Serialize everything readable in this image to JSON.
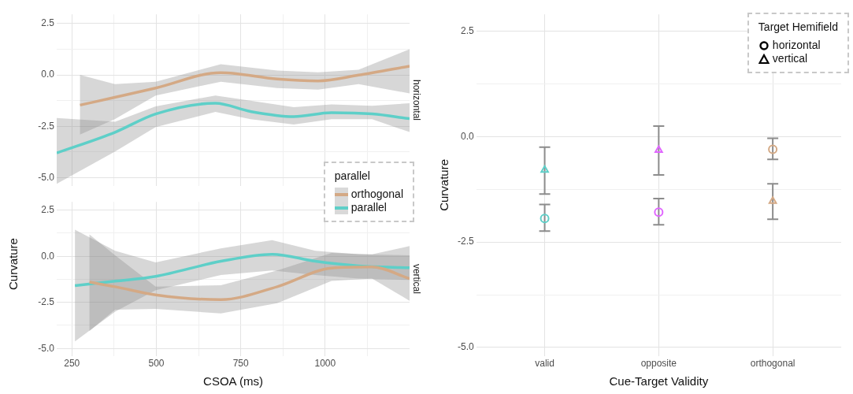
{
  "chart_data": [
    {
      "type": "line",
      "title": "horizontal",
      "ylabel": "Curvature",
      "legend_title": "parallel",
      "legend": "bottom right",
      "xlim": [
        205,
        1250
      ],
      "ylim": [
        -5.4,
        2.95
      ],
      "xticks": [
        250,
        {
          "value": 375,
          "label": null
        },
        500,
        {
          "value": 625,
          "label": null
        },
        750,
        {
          "value": 875,
          "label": null
        },
        1000,
        {
          "value": 1125,
          "label": null
        }
      ],
      "yticks": [
        {
          "value": -5,
          "label": "-5.0"
        },
        {
          "value": -3.75,
          "label": null
        },
        {
          "value": -2.5,
          "label": "-2.5"
        },
        {
          "value": -1.25,
          "label": null
        },
        {
          "value": 0,
          "label": "0.0"
        },
        {
          "value": 1.25,
          "label": null
        },
        {
          "value": 2.5,
          "label": "2.5"
        }
      ],
      "tick_labels": "y",
      "grid": true,
      "marker": "none",
      "series": [
        {
          "name": "orthogonal",
          "color": "#d4a985",
          "x": [
            274,
            377,
            498,
            691,
            858,
            979,
            1099,
            1250
          ],
          "values": [
            -1.47,
            -1.09,
            -0.64,
            0.11,
            -0.2,
            -0.29,
            -0.01,
            0.43
          ],
          "lower": [
            -2.9,
            -2.16,
            -1.0,
            -0.33,
            -0.64,
            -0.72,
            -0.45,
            -0.9
          ],
          "upper": [
            0.0,
            -0.45,
            -0.33,
            0.52,
            0.21,
            0.13,
            0.25,
            1.25
          ]
        },
        {
          "name": "parallel",
          "color": "#5ecfc8",
          "x": [
            205,
            378,
            498,
            675,
            779,
            907,
            1019,
            1139,
            1250
          ],
          "values": [
            -3.8,
            -2.79,
            -1.9,
            -1.38,
            -1.78,
            -2.03,
            -1.84,
            -1.9,
            -2.13
          ],
          "lower": [
            -5.3,
            -3.73,
            -2.54,
            -1.8,
            -2.16,
            -2.41,
            -2.16,
            -2.16,
            -2.78
          ],
          "upper": [
            -2.1,
            -2.28,
            -1.53,
            -1.0,
            -1.25,
            -1.57,
            -1.44,
            -1.5,
            -1.38
          ]
        }
      ]
    },
    {
      "type": "line",
      "title": "vertical",
      "xlabel": "CSOA (ms)",
      "xlim": [
        205,
        1250
      ],
      "ylim": [
        -5.4,
        2.95
      ],
      "xticks": [
        250,
        {
          "value": 375,
          "label": null
        },
        500,
        {
          "value": 625,
          "label": null
        },
        750,
        {
          "value": 875,
          "label": null
        },
        1000,
        {
          "value": 1125,
          "label": null
        }
      ],
      "yticks": [
        {
          "value": -5,
          "label": "-5.0"
        },
        {
          "value": -3.75,
          "label": null
        },
        {
          "value": -2.5,
          "label": "-2.5"
        },
        {
          "value": -1.25,
          "label": null
        },
        {
          "value": 0,
          "label": "0.0"
        },
        {
          "value": 1.25,
          "label": null
        },
        {
          "value": 2.5,
          "label": "2.5"
        }
      ],
      "grid": true,
      "marker": "none",
      "series": [
        {
          "color": "#d4a985",
          "x": [
            302,
            378,
            498,
            691,
            858,
            1019,
            1139,
            1250
          ],
          "values": [
            -1.4,
            -1.65,
            -2.09,
            -2.35,
            -1.65,
            -0.64,
            -0.58,
            -1.21
          ],
          "lower": [
            -4.05,
            -2.9,
            -2.85,
            -3.1,
            -2.54,
            -1.34,
            -1.21,
            -2.41
          ],
          "upper": [
            1.19,
            0.05,
            -1.65,
            -1.57,
            -0.77,
            0.18,
            0.11,
            0.55
          ]
        },
        {
          "color": "#5ecfc8",
          "x": [
            259,
            378,
            498,
            691,
            843,
            971,
            1099,
            1250
          ],
          "values": [
            -1.59,
            -1.35,
            -1.09,
            -0.27,
            0.11,
            -0.27,
            -0.52,
            -0.62
          ],
          "lower": [
            -4.62,
            -3.0,
            -1.84,
            -1.02,
            -0.77,
            -1.02,
            -1.21,
            -1.28
          ],
          "upper": [
            1.44,
            0.3,
            -0.33,
            0.43,
            0.87,
            0.3,
            0.11,
            0.05
          ]
        }
      ]
    },
    {
      "type": "scatter",
      "xlabel": "Cue-Target Validity",
      "ylabel": "Curvature",
      "legend_title": "Target Hemifield",
      "legend": "top right",
      "categories": [
        "valid",
        "opposite",
        "orthogonal"
      ],
      "ylim": [
        -5.2,
        2.9
      ],
      "yticks": [
        {
          "value": -5,
          "label": "-5.0"
        },
        {
          "value": -3.75,
          "label": null
        },
        {
          "value": -2.5,
          "label": "-2.5"
        },
        {
          "value": -1.25,
          "label": null
        },
        {
          "value": 0,
          "label": "0.0"
        },
        {
          "value": 1.25,
          "label": null
        },
        {
          "value": 2.5,
          "label": "2.5"
        }
      ],
      "grid": true,
      "series": [
        {
          "name": "horizontal",
          "marker": "circle",
          "x": [
            "valid",
            "opposite",
            "orthogonal"
          ],
          "values": [
            -1.94,
            -1.79,
            -0.3
          ],
          "colors": [
            "#5ecfc8",
            "#e066ff",
            "#d4a985"
          ],
          "errors": [
            [
              -2.24,
              -1.61
            ],
            [
              -2.09,
              -1.47
            ],
            [
              -0.54,
              -0.04
            ]
          ]
        },
        {
          "name": "vertical",
          "marker": "triangle",
          "x": [
            "valid",
            "opposite",
            "orthogonal"
          ],
          "values": [
            -0.79,
            -0.32,
            -1.53
          ],
          "colors": [
            "#5ecfc8",
            "#e066ff",
            "#d4a985"
          ],
          "errors": [
            [
              -1.36,
              -0.25
            ],
            [
              -0.91,
              0.25
            ],
            [
              -1.96,
              -1.12
            ]
          ]
        }
      ]
    }
  ]
}
